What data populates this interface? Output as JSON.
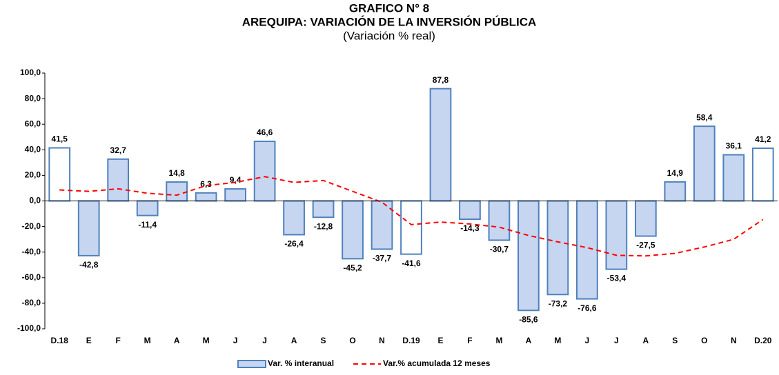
{
  "chart_data": {
    "type": "bar",
    "title": "GRAFICO N° 8",
    "subtitle": "AREQUIPA: VARIACIÓN DE LA INVERSIÓN PÚBLICA",
    "note": "(Variación % real)",
    "categories": [
      "D.18",
      "E",
      "F",
      "M",
      "A",
      "M",
      "J",
      "J",
      "A",
      "S",
      "O",
      "N",
      "D.19",
      "E",
      "F",
      "M",
      "A",
      "M",
      "J",
      "J",
      "A",
      "S",
      "O",
      "N",
      "D.20"
    ],
    "series": [
      {
        "name": "Var. % interanual",
        "type": "bar",
        "color": "#c6d5f0",
        "stroke": "#4f81bd",
        "colors": [
          "#ffffff",
          "#c6d5f0",
          "#c6d5f0",
          "#c6d5f0",
          "#c6d5f0",
          "#c6d5f0",
          "#c6d5f0",
          "#c6d5f0",
          "#c6d5f0",
          "#c6d5f0",
          "#c6d5f0",
          "#c6d5f0",
          "#ffffff",
          "#c6d5f0",
          "#c6d5f0",
          "#c6d5f0",
          "#c6d5f0",
          "#c6d5f0",
          "#c6d5f0",
          "#c6d5f0",
          "#c6d5f0",
          "#c6d5f0",
          "#c6d5f0",
          "#c6d5f0",
          "#ffffff"
        ],
        "values": [
          41.5,
          -42.8,
          32.7,
          -11.4,
          14.8,
          6.3,
          9.4,
          46.6,
          -26.4,
          -12.8,
          -45.2,
          -37.7,
          -41.6,
          87.8,
          -14.3,
          -30.7,
          -85.6,
          -73.2,
          -76.6,
          -53.4,
          -27.5,
          14.9,
          58.4,
          36.1,
          41.2
        ],
        "value_labels": [
          "41,5",
          "-42,8",
          "32,7",
          "-11,4",
          "14,8",
          "6,3",
          "9,4",
          "46,6",
          "-26,4",
          "-12,8",
          "-45,2",
          "-37,7",
          "-41,6",
          "87,8",
          "-14,3",
          "-30,7",
          "-85,6",
          "-73,2",
          "-76,6",
          "-53,4",
          "-27,5",
          "14,9",
          "58,4",
          "36,1",
          "41,2"
        ]
      },
      {
        "name": "Var.% acumulada 12 meses",
        "type": "line",
        "color": "#ff0000",
        "values": [
          8.6,
          7.5,
          9.5,
          6,
          4.5,
          12,
          14.5,
          19,
          14.5,
          16,
          7.5,
          -1,
          -18.5,
          -16.5,
          -18,
          -20.5,
          -27,
          -32,
          -36.5,
          -42.5,
          -43,
          -41,
          -36,
          -30,
          -14.5
        ]
      }
    ],
    "ylim": [
      -100,
      100
    ],
    "yticks": [
      {
        "value": -100,
        "label": "-100,0"
      },
      {
        "value": -80,
        "label": "-80,0"
      },
      {
        "value": -60,
        "label": "-60,0"
      },
      {
        "value": -40,
        "label": "-40,0"
      },
      {
        "value": -20,
        "label": "-20,0"
      },
      {
        "value": 0,
        "label": "0,0"
      },
      {
        "value": 20,
        "label": "20,0"
      },
      {
        "value": 40,
        "label": "40,0"
      },
      {
        "value": 60,
        "label": "60,0"
      },
      {
        "value": 80,
        "label": "80,0"
      },
      {
        "value": 100,
        "label": "100,0"
      }
    ],
    "grid": false,
    "legend": "bottom"
  }
}
